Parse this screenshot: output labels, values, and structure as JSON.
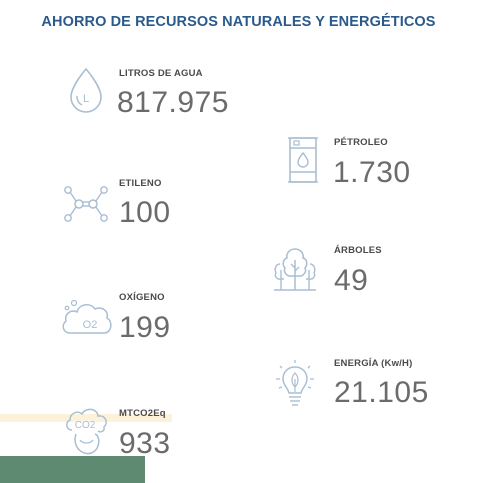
{
  "title": "AHORRO DE RECURSOS NATURALES Y ENERGÉTICOS",
  "stats": [
    {
      "label": "LITROS DE AGUA",
      "value": "817.975",
      "icon": "water-drop-icon",
      "icon_text": "L"
    },
    {
      "label": "PÉTROLEO",
      "value": "1.730",
      "icon": "oil-barrel-icon"
    },
    {
      "label": "ETILENO",
      "value": "100",
      "icon": "molecule-icon"
    },
    {
      "label": "ÁRBOLES",
      "value": "49",
      "icon": "trees-icon"
    },
    {
      "label": "OXÍGENO",
      "value": "199",
      "icon": "oxygen-cloud-icon",
      "icon_text": "O2"
    },
    {
      "label": "ENERGÍA (Kw/H)",
      "value": "21.105",
      "icon": "lightbulb-icon"
    },
    {
      "label": "MTCO2Eq",
      "value": "933",
      "icon": "co2-icon",
      "icon_text": "CO2"
    }
  ],
  "colors": {
    "title": "#2a5a8c",
    "icon_stroke": "#a9bed3",
    "value": "#6b6b6b",
    "label": "#4a4a4a",
    "sand_bar": "#fbf2d9",
    "green_bar": "#5f8a72"
  }
}
